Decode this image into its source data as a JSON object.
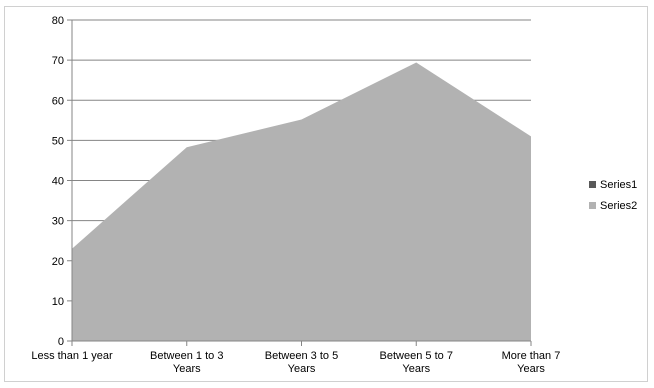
{
  "chart_data": {
    "type": "area",
    "categories": [
      [
        "Less than 1 year"
      ],
      [
        "Between 1 to 3",
        "Years"
      ],
      [
        "Between 3 to 5",
        "Years"
      ],
      [
        "Between 5 to 7",
        "Years"
      ],
      [
        "More than 7",
        "Years"
      ]
    ],
    "series": [
      {
        "name": "Series1",
        "values": [
          0,
          0,
          0,
          0,
          0
        ],
        "color": "#595959"
      },
      {
        "name": "Series2",
        "values": [
          23,
          48.3,
          55.2,
          69.4,
          51
        ],
        "color": "#b2b2b2"
      }
    ],
    "ylim": [
      0,
      80
    ],
    "yticks": [
      0,
      10,
      20,
      30,
      40,
      50,
      60,
      70,
      80
    ],
    "grid": true,
    "legend_position": "right",
    "title": "",
    "xlabel": "",
    "ylabel": ""
  }
}
